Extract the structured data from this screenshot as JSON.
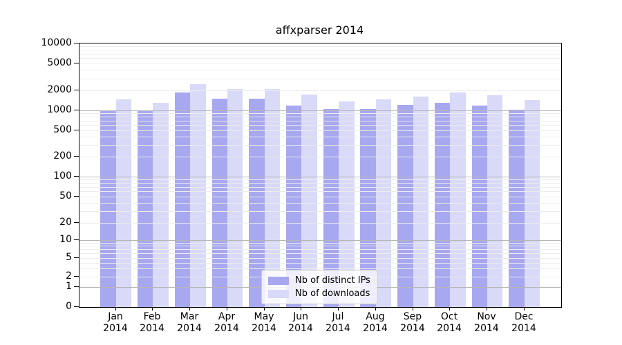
{
  "title": "affxparser 2014",
  "colors": {
    "bar_distinct_ips": "#a8a8f0",
    "bar_downloads": "#d9d9f8",
    "grid_minor": "#ececec",
    "grid_major": "#b6b6b6",
    "axis": "#000000",
    "legend_border": "#cccccc",
    "legend_background": "rgba(255,255,255,0.8)",
    "text": "#000000"
  },
  "chart_data": {
    "type": "bar",
    "title": "affxparser 2014",
    "categories": [
      "Jan 2014",
      "Feb 2014",
      "Mar 2014",
      "Apr 2014",
      "May 2014",
      "Jun 2014",
      "Jul 2014",
      "Aug 2014",
      "Sep 2014",
      "Oct 2014",
      "Nov 2014",
      "Dec 2014"
    ],
    "x_tick_labels": [
      {
        "month": "Jan",
        "year": "2014"
      },
      {
        "month": "Feb",
        "year": "2014"
      },
      {
        "month": "Mar",
        "year": "2014"
      },
      {
        "month": "Apr",
        "year": "2014"
      },
      {
        "month": "May",
        "year": "2014"
      },
      {
        "month": "Jun",
        "year": "2014"
      },
      {
        "month": "Jul",
        "year": "2014"
      },
      {
        "month": "Aug",
        "year": "2014"
      },
      {
        "month": "Sep",
        "year": "2014"
      },
      {
        "month": "Oct",
        "year": "2014"
      },
      {
        "month": "Nov",
        "year": "2014"
      },
      {
        "month": "Dec",
        "year": "2014"
      }
    ],
    "series": [
      {
        "name": "Nb of distinct IPs",
        "color": "#a8a8f0",
        "values": [
          990,
          990,
          1840,
          1500,
          1480,
          1170,
          1030,
          1050,
          1210,
          1280,
          1180,
          1010
        ]
      },
      {
        "name": "Nb of downloads",
        "color": "#d9d9f8",
        "values": [
          1450,
          1300,
          2460,
          2070,
          2060,
          1730,
          1360,
          1470,
          1590,
          1840,
          1670,
          1420
        ]
      }
    ],
    "ylabel": "",
    "xlabel": "",
    "yticks": [
      0,
      1,
      2,
      5,
      10,
      20,
      50,
      100,
      200,
      500,
      1000,
      2000,
      5000,
      10000
    ],
    "ytick_labels": [
      "0",
      "1",
      "2",
      "5",
      "10",
      "20",
      "50",
      "100",
      "200",
      "500",
      "1000",
      "2000",
      "5000",
      "10000"
    ],
    "ylim": [
      0,
      10000
    ],
    "yscale": "log-like (log decades with compressed 0-1 region)",
    "grid": "on (minor log gridlines light, power-of-10 gridlines darker, drawn over bars)",
    "legend_position": "inside plot, lower center"
  }
}
